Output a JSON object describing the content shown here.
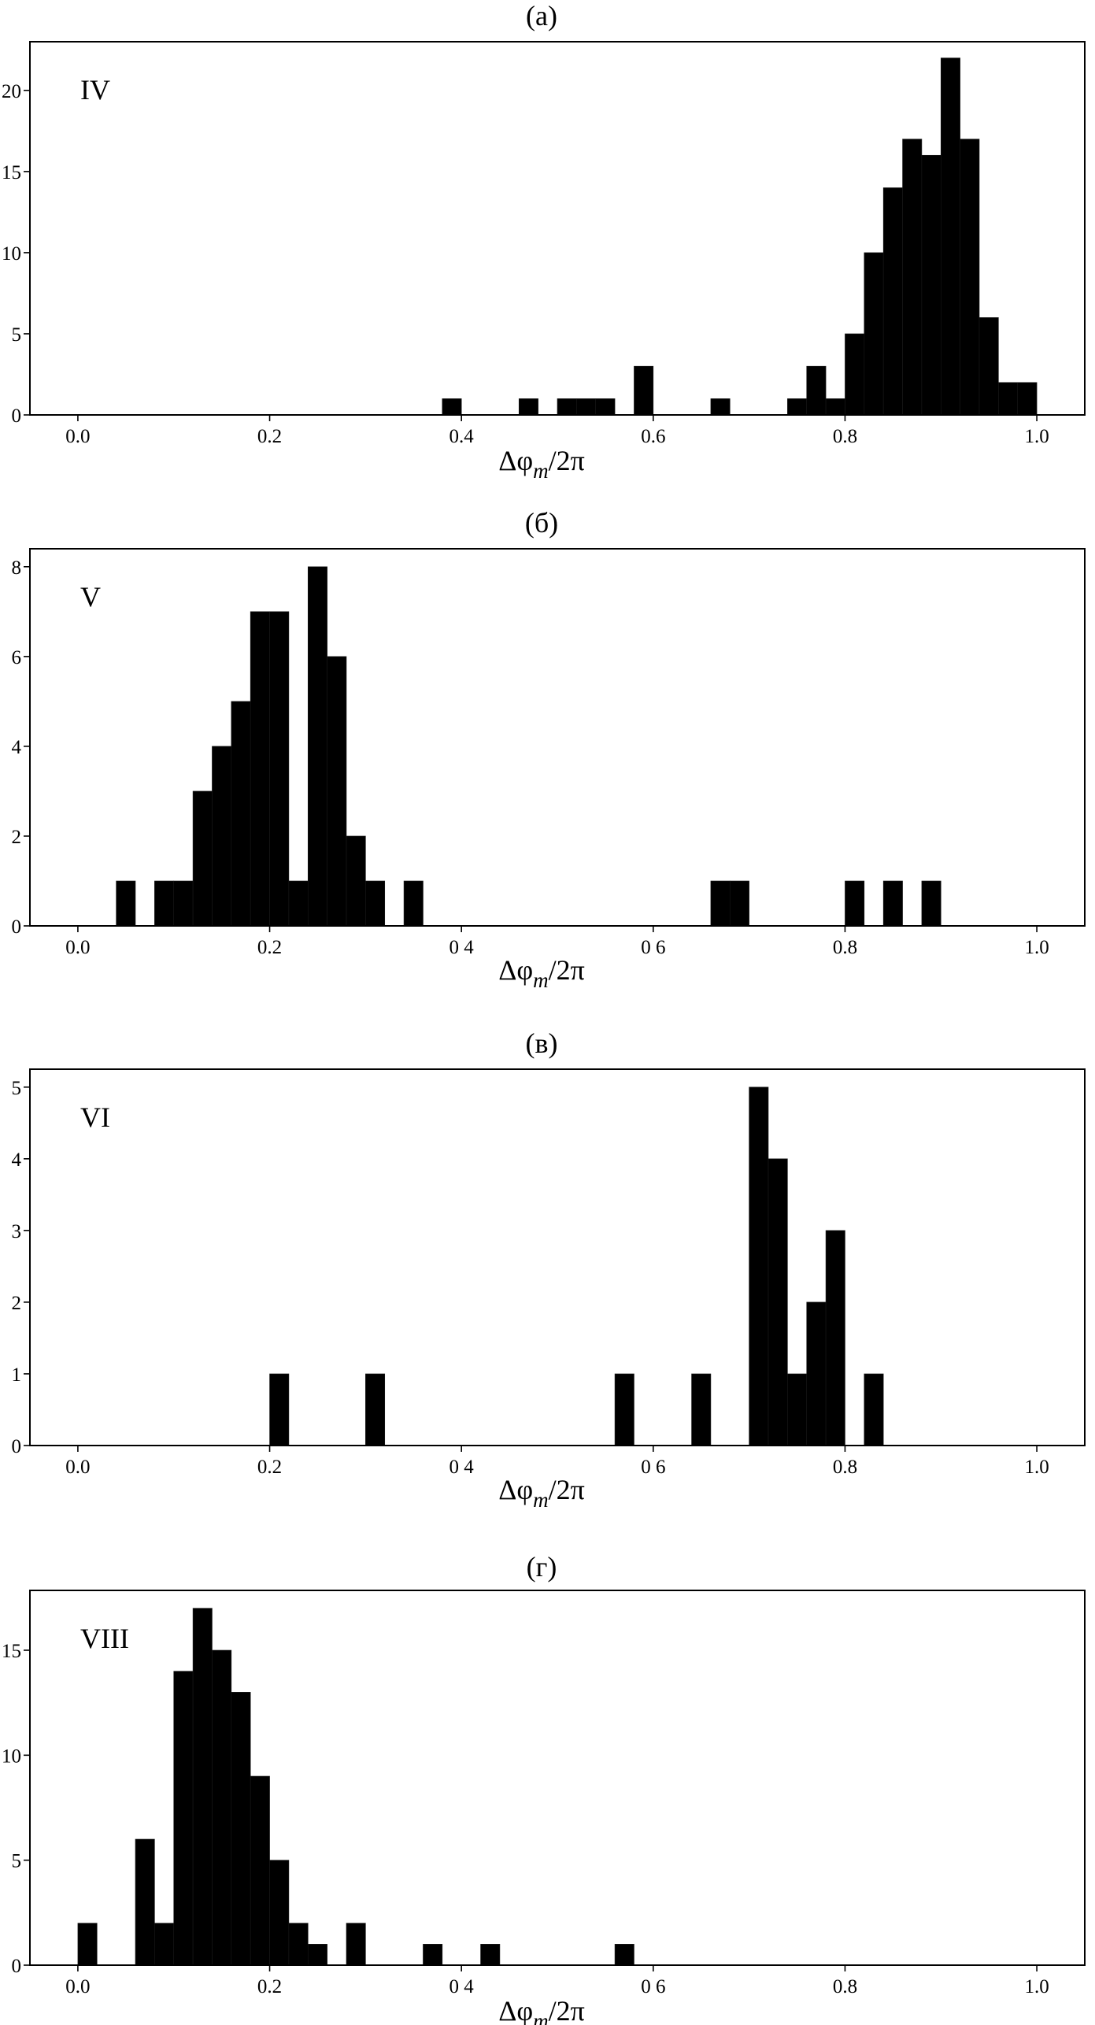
{
  "chart_data": [
    {
      "type": "bar",
      "title": "(а)",
      "panel_label": "IV",
      "xlabel": "Δφm/2π",
      "xlim": [
        -0.05,
        1.05
      ],
      "ylim": [
        0,
        23
      ],
      "xticks": [
        0.0,
        0.2,
        0.4,
        0.6,
        0.8,
        1.0
      ],
      "xtick_labels": [
        "0.0",
        "0.2",
        "0.4",
        "0.6",
        "0.8",
        "1.0"
      ],
      "yticks": [
        0,
        5,
        10,
        15,
        20
      ],
      "ytick_labels": [
        "0",
        "5",
        "10",
        "15",
        "20"
      ],
      "bin_width": 0.02,
      "bins": [
        {
          "x": 0.38,
          "count": 1
        },
        {
          "x": 0.46,
          "count": 1
        },
        {
          "x": 0.5,
          "count": 1
        },
        {
          "x": 0.52,
          "count": 1
        },
        {
          "x": 0.54,
          "count": 1
        },
        {
          "x": 0.58,
          "count": 3
        },
        {
          "x": 0.66,
          "count": 1
        },
        {
          "x": 0.74,
          "count": 1
        },
        {
          "x": 0.76,
          "count": 3
        },
        {
          "x": 0.78,
          "count": 1
        },
        {
          "x": 0.8,
          "count": 5
        },
        {
          "x": 0.82,
          "count": 10
        },
        {
          "x": 0.84,
          "count": 14
        },
        {
          "x": 0.86,
          "count": 17
        },
        {
          "x": 0.88,
          "count": 16
        },
        {
          "x": 0.9,
          "count": 22
        },
        {
          "x": 0.92,
          "count": 17
        },
        {
          "x": 0.94,
          "count": 6
        },
        {
          "x": 0.96,
          "count": 2
        },
        {
          "x": 0.98,
          "count": 2
        }
      ]
    },
    {
      "type": "bar",
      "title": "(б)",
      "panel_label": "V",
      "xlabel": "Δφm/2π",
      "xlim": [
        -0.05,
        1.05
      ],
      "ylim": [
        0,
        8.4
      ],
      "xticks": [
        0.0,
        0.2,
        0.4,
        0.6,
        0.8,
        1.0
      ],
      "xtick_labels": [
        "0.0",
        "0.2",
        "0 4",
        "0 6",
        "0.8",
        "1.0"
      ],
      "yticks": [
        0,
        2,
        4,
        6,
        8
      ],
      "ytick_labels": [
        "0",
        "2",
        "4",
        "6",
        "8"
      ],
      "bin_width": 0.02,
      "bins": [
        {
          "x": 0.04,
          "count": 1
        },
        {
          "x": 0.08,
          "count": 1
        },
        {
          "x": 0.1,
          "count": 1
        },
        {
          "x": 0.12,
          "count": 3
        },
        {
          "x": 0.14,
          "count": 4
        },
        {
          "x": 0.16,
          "count": 5
        },
        {
          "x": 0.18,
          "count": 7
        },
        {
          "x": 0.2,
          "count": 7
        },
        {
          "x": 0.22,
          "count": 1
        },
        {
          "x": 0.24,
          "count": 8
        },
        {
          "x": 0.26,
          "count": 6
        },
        {
          "x": 0.28,
          "count": 2
        },
        {
          "x": 0.3,
          "count": 1
        },
        {
          "x": 0.34,
          "count": 1
        },
        {
          "x": 0.66,
          "count": 1
        },
        {
          "x": 0.68,
          "count": 1
        },
        {
          "x": 0.8,
          "count": 1
        },
        {
          "x": 0.84,
          "count": 1
        },
        {
          "x": 0.88,
          "count": 1
        }
      ]
    },
    {
      "type": "bar",
      "title": "(в)",
      "panel_label": "VI",
      "xlabel": "Δφm/2π",
      "xlim": [
        -0.05,
        1.05
      ],
      "ylim": [
        0,
        5.25
      ],
      "xticks": [
        0.0,
        0.2,
        0.4,
        0.6,
        0.8,
        1.0
      ],
      "xtick_labels": [
        "0.0",
        "0.2",
        "0 4",
        "0 6",
        "0.8",
        "1.0"
      ],
      "yticks": [
        0,
        1,
        2,
        3,
        4,
        5
      ],
      "ytick_labels": [
        "0",
        "1",
        "2",
        "3",
        "4",
        "5"
      ],
      "bin_width": 0.02,
      "bins": [
        {
          "x": 0.2,
          "count": 1
        },
        {
          "x": 0.3,
          "count": 1
        },
        {
          "x": 0.56,
          "count": 1
        },
        {
          "x": 0.64,
          "count": 1
        },
        {
          "x": 0.7,
          "count": 5
        },
        {
          "x": 0.72,
          "count": 4
        },
        {
          "x": 0.74,
          "count": 1
        },
        {
          "x": 0.76,
          "count": 2
        },
        {
          "x": 0.78,
          "count": 3
        },
        {
          "x": 0.82,
          "count": 1
        }
      ]
    },
    {
      "type": "bar",
      "title": "(г)",
      "panel_label": "VIII",
      "xlabel": "Δφm/2π",
      "xlim": [
        -0.05,
        1.05
      ],
      "ylim": [
        0,
        17.85
      ],
      "xticks": [
        0.0,
        0.2,
        0.4,
        0.6,
        0.8,
        1.0
      ],
      "xtick_labels": [
        "0.0",
        "0.2",
        "0 4",
        "0 6",
        "0.8",
        "1.0"
      ],
      "yticks": [
        0,
        5,
        10,
        15
      ],
      "ytick_labels": [
        "0",
        "5",
        "10",
        "15"
      ],
      "bin_width": 0.02,
      "bins": [
        {
          "x": 0.0,
          "count": 2
        },
        {
          "x": 0.06,
          "count": 6
        },
        {
          "x": 0.08,
          "count": 2
        },
        {
          "x": 0.1,
          "count": 14
        },
        {
          "x": 0.12,
          "count": 17
        },
        {
          "x": 0.14,
          "count": 15
        },
        {
          "x": 0.16,
          "count": 13
        },
        {
          "x": 0.18,
          "count": 9
        },
        {
          "x": 0.2,
          "count": 5
        },
        {
          "x": 0.22,
          "count": 2
        },
        {
          "x": 0.24,
          "count": 1
        },
        {
          "x": 0.28,
          "count": 2
        },
        {
          "x": 0.36,
          "count": 1
        },
        {
          "x": 0.42,
          "count": 1
        },
        {
          "x": 0.56,
          "count": 1
        }
      ]
    }
  ]
}
